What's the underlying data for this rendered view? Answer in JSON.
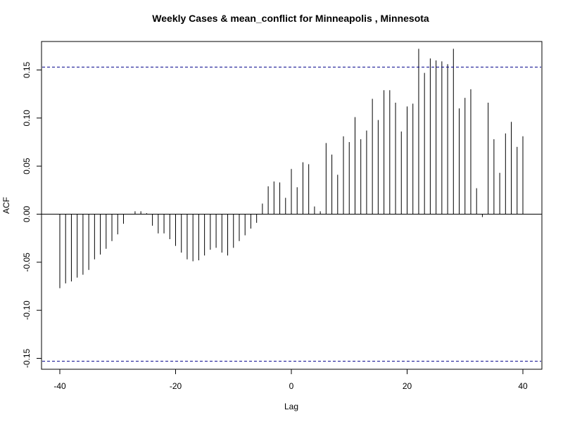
{
  "chart_data": {
    "type": "bar",
    "subtype": "acf-spike",
    "title": "Weekly Cases & mean_conflict for Minneapolis , Minnesota",
    "xlabel": "Lag",
    "ylabel": "ACF",
    "xlim": [
      -40,
      40
    ],
    "ylim": [
      -0.15,
      0.17
    ],
    "x_ticks": [
      -40,
      -20,
      0,
      20,
      40
    ],
    "y_ticks": [
      -0.15,
      -0.1,
      -0.05,
      0.0,
      0.05,
      0.1,
      0.15
    ],
    "x_tick_labels": [
      "-40",
      "-20",
      "0",
      "20",
      "40"
    ],
    "y_tick_labels": [
      "-0.15",
      "-0.10",
      "-0.05",
      "0.00",
      "0.05",
      "0.10",
      "0.15"
    ],
    "confidence_bound": 0.153,
    "grid": false,
    "colors": {
      "spike": "#000000",
      "ci": "#00008b",
      "zero": "#000000"
    },
    "lags": [
      -40,
      -39,
      -38,
      -37,
      -36,
      -35,
      -34,
      -33,
      -32,
      -31,
      -30,
      -29,
      -28,
      -27,
      -26,
      -25,
      -24,
      -23,
      -22,
      -21,
      -20,
      -19,
      -18,
      -17,
      -16,
      -15,
      -14,
      -13,
      -12,
      -11,
      -10,
      -9,
      -8,
      -7,
      -6,
      -5,
      -4,
      -3,
      -2,
      -1,
      0,
      1,
      2,
      3,
      4,
      5,
      6,
      7,
      8,
      9,
      10,
      11,
      12,
      13,
      14,
      15,
      16,
      17,
      18,
      19,
      20,
      21,
      22,
      23,
      24,
      25,
      26,
      27,
      28,
      29,
      30,
      31,
      32,
      33,
      34,
      35,
      36,
      37,
      38,
      39,
      40
    ],
    "values": [
      -0.077,
      -0.072,
      -0.07,
      -0.066,
      -0.063,
      -0.058,
      -0.047,
      -0.042,
      -0.036,
      -0.028,
      -0.021,
      -0.01,
      0.0,
      0.003,
      0.003,
      0.001,
      -0.012,
      -0.02,
      -0.02,
      -0.026,
      -0.033,
      -0.04,
      -0.047,
      -0.049,
      -0.048,
      -0.043,
      -0.037,
      -0.035,
      -0.04,
      -0.043,
      -0.035,
      -0.028,
      -0.022,
      -0.015,
      -0.009,
      0.011,
      0.029,
      0.034,
      0.033,
      0.017,
      0.047,
      0.028,
      0.054,
      0.052,
      0.008,
      0.003,
      0.074,
      0.062,
      0.041,
      0.081,
      0.075,
      0.101,
      0.078,
      0.087,
      0.12,
      0.098,
      0.129,
      0.129,
      0.116,
      0.086,
      0.112,
      0.115,
      0.172,
      0.147,
      0.162,
      0.16,
      0.159,
      0.156,
      0.172,
      0.11,
      0.121,
      0.13,
      0.027,
      -0.003,
      0.116,
      0.078,
      0.043,
      0.084,
      0.096,
      0.07,
      0.081
    ]
  }
}
